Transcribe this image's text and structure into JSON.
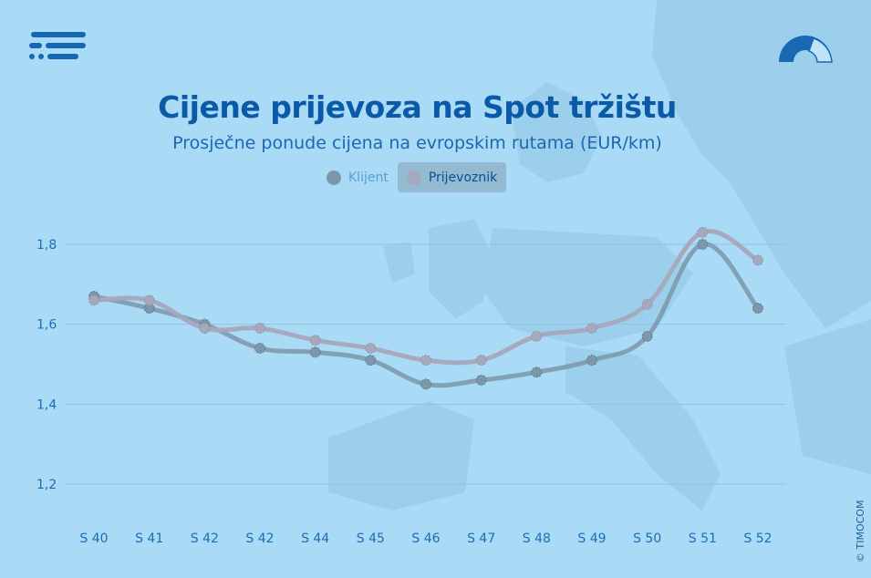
{
  "header": {
    "title": "Cijene prijevoza na Spot tržištu",
    "subtitle": "Prosječne ponude cijena na evropskim rutama (EUR/km)",
    "copyright": "© TIMOCOM"
  },
  "icons": {
    "left_logo": "timocom-logo-icon",
    "right_logo": "gauge-icon"
  },
  "colors": {
    "background": "#a9dbf7",
    "title": "#0a5aa8",
    "klijent": "#7c97a9",
    "prijevoznik": "#a6a8bc",
    "grid": "#8fc3df",
    "axis_text": "#1c6db3"
  },
  "chart_data": {
    "type": "line",
    "title": "Cijene prijevoza na Spot tržištu",
    "subtitle": "Prosječne ponude cijena na evropskim rutama (EUR/km)",
    "categories": [
      "S 40",
      "S 41",
      "S 42",
      "S 42",
      "S 44",
      "S 45",
      "S 46",
      "S 47",
      "S 48",
      "S 49",
      "S 50",
      "S 51",
      "S 52"
    ],
    "series": [
      {
        "name": "Klijent",
        "values": [
          1.67,
          1.64,
          1.6,
          1.54,
          1.53,
          1.51,
          1.45,
          1.46,
          1.48,
          1.51,
          1.57,
          1.8,
          1.64
        ]
      },
      {
        "name": "Prijevoznik",
        "values": [
          1.66,
          1.66,
          1.59,
          1.59,
          1.56,
          1.54,
          1.51,
          1.51,
          1.57,
          1.59,
          1.65,
          1.83,
          1.76
        ]
      }
    ],
    "yticks": [
      "1,2",
      "1,4",
      "1,6",
      "1,8"
    ],
    "ylim": [
      1.2,
      1.8
    ],
    "grid": true,
    "legend": "top-center",
    "selected_legend": "Prijevoznik"
  }
}
